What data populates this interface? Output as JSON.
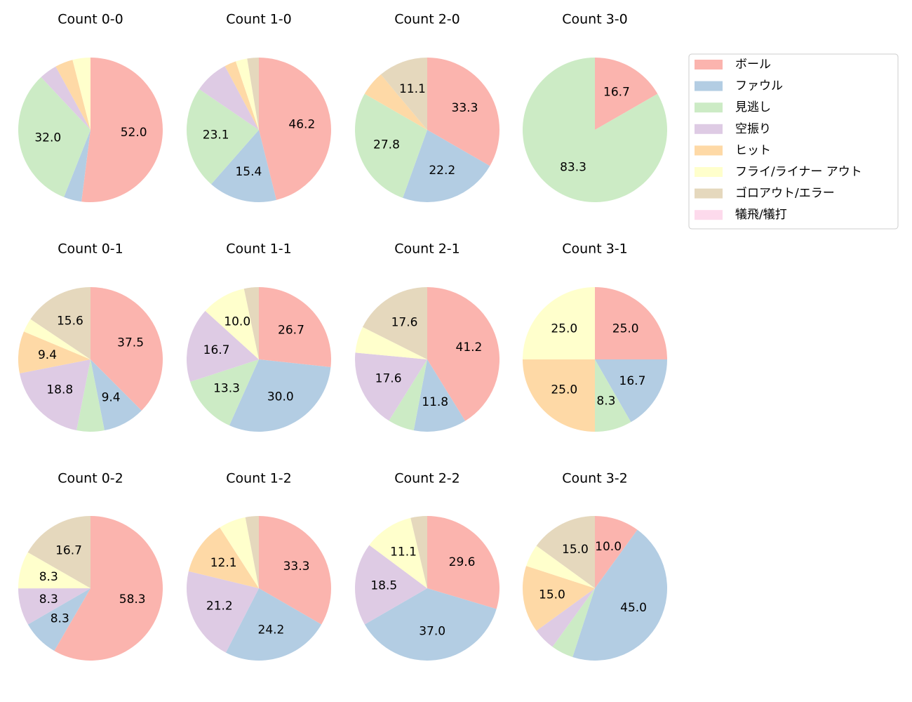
{
  "chart_data": [
    {
      "type": "pie",
      "title": "Count 0-0",
      "categories": [
        "ボール",
        "ファウル",
        "見逃し",
        "空振り",
        "ヒット",
        "フライ/ライナー アウト",
        "ゴロアウト/エラー",
        "犠飛/犠打"
      ],
      "colors": [
        "#fbb4ae",
        "#b3cde3",
        "#ccebc5",
        "#decbe4",
        "#fed9a6",
        "#ffffcc",
        "#e5d8bd",
        "#fddaec"
      ],
      "values": [
        52.0,
        4.0,
        32.0,
        4.0,
        4.0,
        4.0,
        0,
        0
      ],
      "value_labels": [
        "52.0",
        null,
        "32.0",
        null,
        null,
        null,
        null,
        null
      ]
    },
    {
      "type": "pie",
      "title": "Count 1-0",
      "categories": [
        "ボール",
        "ファウル",
        "見逃し",
        "空振り",
        "ヒット",
        "フライ/ライナー アウト",
        "ゴロアウト/エラー",
        "犠飛/犠打"
      ],
      "colors": [
        "#fbb4ae",
        "#b3cde3",
        "#ccebc5",
        "#decbe4",
        "#fed9a6",
        "#ffffcc",
        "#e5d8bd",
        "#fddaec"
      ],
      "values": [
        46.2,
        15.4,
        23.1,
        7.7,
        2.6,
        2.6,
        2.6,
        0
      ],
      "value_labels": [
        "46.2",
        "15.4",
        "23.1",
        null,
        null,
        null,
        null,
        null
      ]
    },
    {
      "type": "pie",
      "title": "Count 2-0",
      "categories": [
        "ボール",
        "ファウル",
        "見逃し",
        "空振り",
        "ヒット",
        "フライ/ライナー アウト",
        "ゴロアウト/エラー",
        "犠飛/犠打"
      ],
      "colors": [
        "#fbb4ae",
        "#b3cde3",
        "#ccebc5",
        "#decbe4",
        "#fed9a6",
        "#ffffcc",
        "#e5d8bd",
        "#fddaec"
      ],
      "values": [
        33.3,
        22.2,
        27.8,
        0,
        5.6,
        0,
        11.1,
        0
      ],
      "value_labels": [
        "33.3",
        "22.2",
        "27.8",
        null,
        null,
        null,
        "11.1",
        null
      ]
    },
    {
      "type": "pie",
      "title": "Count 3-0",
      "categories": [
        "ボール",
        "ファウル",
        "見逃し",
        "空振り",
        "ヒット",
        "フライ/ライナー アウト",
        "ゴロアウト/エラー",
        "犠飛/犠打"
      ],
      "colors": [
        "#fbb4ae",
        "#b3cde3",
        "#ccebc5",
        "#decbe4",
        "#fed9a6",
        "#ffffcc",
        "#e5d8bd",
        "#fddaec"
      ],
      "values": [
        16.7,
        0,
        83.3,
        0,
        0,
        0,
        0,
        0
      ],
      "value_labels": [
        "16.7",
        null,
        "83.3",
        null,
        null,
        null,
        null,
        null
      ]
    },
    {
      "type": "pie",
      "title": "Count 0-1",
      "categories": [
        "ボール",
        "ファウル",
        "見逃し",
        "空振り",
        "ヒット",
        "フライ/ライナー アウト",
        "ゴロアウト/エラー",
        "犠飛/犠打"
      ],
      "colors": [
        "#fbb4ae",
        "#b3cde3",
        "#ccebc5",
        "#decbe4",
        "#fed9a6",
        "#ffffcc",
        "#e5d8bd",
        "#fddaec"
      ],
      "values": [
        37.5,
        9.4,
        6.2,
        18.8,
        9.4,
        3.1,
        15.6,
        0
      ],
      "value_labels": [
        "37.5",
        "9.4",
        null,
        "18.8",
        "9.4",
        null,
        "15.6",
        null
      ]
    },
    {
      "type": "pie",
      "title": "Count 1-1",
      "categories": [
        "ボール",
        "ファウル",
        "見逃し",
        "空振り",
        "ヒット",
        "フライ/ライナー アウト",
        "ゴロアウト/エラー",
        "犠飛/犠打"
      ],
      "colors": [
        "#fbb4ae",
        "#b3cde3",
        "#ccebc5",
        "#decbe4",
        "#fed9a6",
        "#ffffcc",
        "#e5d8bd",
        "#fddaec"
      ],
      "values": [
        26.7,
        30.0,
        13.3,
        16.7,
        0,
        10.0,
        3.3,
        0
      ],
      "value_labels": [
        "26.7",
        "30.0",
        "13.3",
        "16.7",
        null,
        "10.0",
        null,
        null
      ]
    },
    {
      "type": "pie",
      "title": "Count 2-1",
      "categories": [
        "ボール",
        "ファウル",
        "見逃し",
        "空振り",
        "ヒット",
        "フライ/ライナー アウト",
        "ゴロアウト/エラー",
        "犠飛/犠打"
      ],
      "colors": [
        "#fbb4ae",
        "#b3cde3",
        "#ccebc5",
        "#decbe4",
        "#fed9a6",
        "#ffffcc",
        "#e5d8bd",
        "#fddaec"
      ],
      "values": [
        41.2,
        11.8,
        5.9,
        17.6,
        0,
        5.9,
        17.6,
        0
      ],
      "value_labels": [
        "41.2",
        "11.8",
        null,
        "17.6",
        null,
        null,
        "17.6",
        null
      ]
    },
    {
      "type": "pie",
      "title": "Count 3-1",
      "categories": [
        "ボール",
        "ファウル",
        "見逃し",
        "空振り",
        "ヒット",
        "フライ/ライナー アウト",
        "ゴロアウト/エラー",
        "犠飛/犠打"
      ],
      "colors": [
        "#fbb4ae",
        "#b3cde3",
        "#ccebc5",
        "#decbe4",
        "#fed9a6",
        "#ffffcc",
        "#e5d8bd",
        "#fddaec"
      ],
      "values": [
        25.0,
        16.7,
        8.3,
        0,
        25.0,
        25.0,
        0,
        0
      ],
      "value_labels": [
        "25.0",
        "16.7",
        "8.3",
        null,
        "25.0",
        "25.0",
        null,
        null
      ]
    },
    {
      "type": "pie",
      "title": "Count 0-2",
      "categories": [
        "ボール",
        "ファウル",
        "見逃し",
        "空振り",
        "ヒット",
        "フライ/ライナー アウト",
        "ゴロアウト/エラー",
        "犠飛/犠打"
      ],
      "colors": [
        "#fbb4ae",
        "#b3cde3",
        "#ccebc5",
        "#decbe4",
        "#fed9a6",
        "#ffffcc",
        "#e5d8bd",
        "#fddaec"
      ],
      "values": [
        58.3,
        8.3,
        0,
        8.3,
        0,
        8.3,
        16.7,
        0
      ],
      "value_labels": [
        "58.3",
        "8.3",
        null,
        "8.3",
        null,
        "8.3",
        "16.7",
        null
      ]
    },
    {
      "type": "pie",
      "title": "Count 1-2",
      "categories": [
        "ボール",
        "ファウル",
        "見逃し",
        "空振り",
        "ヒット",
        "フライ/ライナー アウト",
        "ゴロアウト/エラー",
        "犠飛/犠打"
      ],
      "colors": [
        "#fbb4ae",
        "#b3cde3",
        "#ccebc5",
        "#decbe4",
        "#fed9a6",
        "#ffffcc",
        "#e5d8bd",
        "#fddaec"
      ],
      "values": [
        33.3,
        24.2,
        0,
        21.2,
        12.1,
        6.1,
        3.0,
        0
      ],
      "value_labels": [
        "33.3",
        "24.2",
        null,
        "21.2",
        "12.1",
        null,
        null,
        null
      ]
    },
    {
      "type": "pie",
      "title": "Count 2-2",
      "categories": [
        "ボール",
        "ファウル",
        "見逃し",
        "空振り",
        "ヒット",
        "フライ/ライナー アウト",
        "ゴロアウト/エラー",
        "犠飛/犠打"
      ],
      "colors": [
        "#fbb4ae",
        "#b3cde3",
        "#ccebc5",
        "#decbe4",
        "#fed9a6",
        "#ffffcc",
        "#e5d8bd",
        "#fddaec"
      ],
      "values": [
        29.6,
        37.0,
        0,
        18.5,
        0,
        11.1,
        3.7,
        0
      ],
      "value_labels": [
        "29.6",
        "37.0",
        null,
        "18.5",
        null,
        "11.1",
        null,
        null
      ]
    },
    {
      "type": "pie",
      "title": "Count 3-2",
      "categories": [
        "ボール",
        "ファウル",
        "見逃し",
        "空振り",
        "ヒット",
        "フライ/ライナー アウト",
        "ゴロアウト/エラー",
        "犠飛/犠打"
      ],
      "colors": [
        "#fbb4ae",
        "#b3cde3",
        "#ccebc5",
        "#decbe4",
        "#fed9a6",
        "#ffffcc",
        "#e5d8bd",
        "#fddaec"
      ],
      "values": [
        10.0,
        45.0,
        5.0,
        5.0,
        15.0,
        5.0,
        15.0,
        0
      ],
      "value_labels": [
        "10.0",
        "45.0",
        null,
        null,
        "15.0",
        null,
        "15.0",
        null
      ]
    }
  ]
}
